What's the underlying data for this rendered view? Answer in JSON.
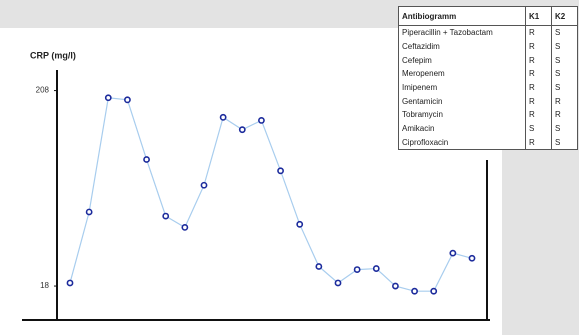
{
  "chart_data": {
    "type": "line",
    "y_label": "CRP (mg/l)",
    "categories": [
      null,
      null,
      null,
      null,
      null,
      null,
      null,
      null,
      null,
      null,
      null,
      null,
      null,
      null,
      null,
      null,
      null,
      null,
      null,
      null,
      null,
      null
    ],
    "series": [
      {
        "color": "#a8cdee",
        "marker_color": "#1c2b9c",
        "values": [
          21,
          90,
          201,
          199,
          141,
          86,
          75,
          116,
          182,
          170,
          179,
          130,
          78,
          37,
          21,
          34,
          35,
          18,
          13,
          13,
          50,
          45
        ]
      }
    ],
    "ylim": [
      -15,
      228
    ],
    "yticks": [
      18,
      208
    ]
  },
  "table": {
    "header": [
      "Antibiogramm",
      "K1",
      "K2"
    ],
    "rows": [
      [
        "Piperacillin + Tazobactam",
        "R",
        "S"
      ],
      [
        "Ceftazidim",
        "R",
        "S"
      ],
      [
        "Cefepim",
        "R",
        "S"
      ],
      [
        "Meropenem",
        "R",
        "S"
      ],
      [
        "Imipenem",
        "R",
        "S"
      ],
      [
        "Gentamicin",
        "R",
        "R"
      ],
      [
        "Tobramycin",
        "R",
        "R"
      ],
      [
        "Amikacin",
        "S",
        "S"
      ],
      [
        "Ciprofloxacin",
        "R",
        "S"
      ]
    ]
  }
}
